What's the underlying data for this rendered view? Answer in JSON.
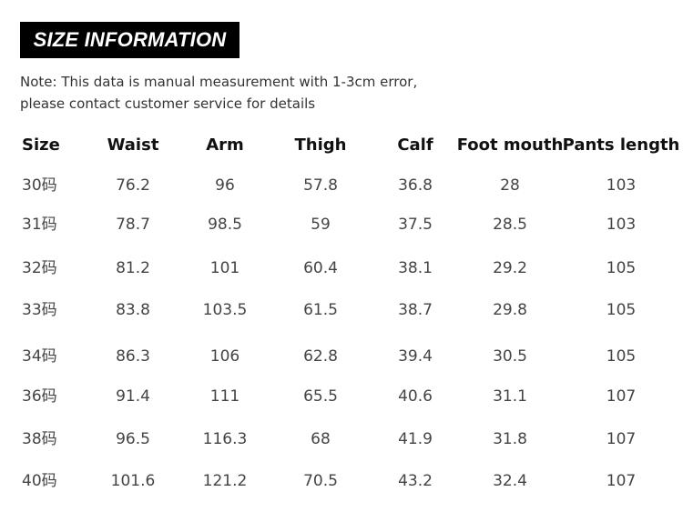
{
  "title": "SIZE INFORMATION",
  "note": {
    "line1": "Note: This data is manual measurement with 1-3cm error,",
    "line2": "please contact customer service for details"
  },
  "table": {
    "headers": [
      "Size",
      "Waist",
      "Arm",
      "Thigh",
      "Calf",
      "Foot mouth",
      "Pants length"
    ],
    "rows": [
      [
        "30码",
        "76.2",
        "96",
        "57.8",
        "36.8",
        "28",
        "103"
      ],
      [
        "31码",
        "78.7",
        "98.5",
        "59",
        "37.5",
        "28.5",
        "103"
      ],
      [
        "32码",
        "81.2",
        "101",
        "60.4",
        "38.1",
        "29.2",
        "105"
      ],
      [
        "33码",
        "83.8",
        "103.5",
        "61.5",
        "38.7",
        "29.8",
        "105"
      ],
      [
        "34码",
        "86.3",
        "106",
        "62.8",
        "39.4",
        "30.5",
        "105"
      ],
      [
        "36码",
        "91.4",
        "111",
        "65.5",
        "40.6",
        "31.1",
        "107"
      ],
      [
        "38码",
        "96.5",
        "116.3",
        "68",
        "41.9",
        "31.8",
        "107"
      ],
      [
        "40码",
        "101.6",
        "121.2",
        "70.5",
        "43.2",
        "32.4",
        "107"
      ]
    ]
  }
}
